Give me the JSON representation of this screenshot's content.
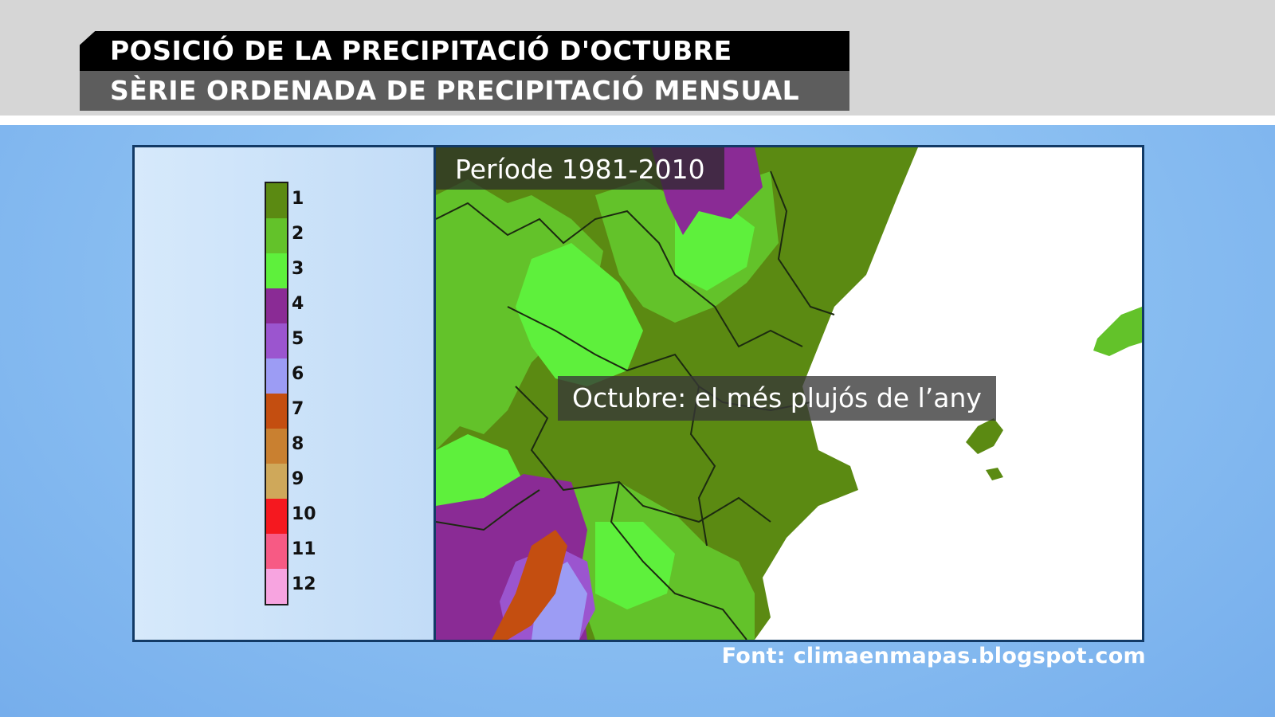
{
  "title": {
    "line1": "POSICIÓ DE LA PRECIPITACIÓ D'OCTUBRE",
    "line2": "SÈRIE ORDENADA DE PRECIPITACIÓ MENSUAL"
  },
  "map": {
    "period_label": "Període 1981-2010",
    "annotation": "Octubre: el més plujós de l’any",
    "colors": {
      "sea": "#ffffff",
      "border_lines": "#1c2a10"
    }
  },
  "legend": {
    "items": [
      {
        "label": "1",
        "color": "#5b8a12"
      },
      {
        "label": "2",
        "color": "#63c22a"
      },
      {
        "label": "3",
        "color": "#5ef03c"
      },
      {
        "label": "4",
        "color": "#8a2b95"
      },
      {
        "label": "5",
        "color": "#9b55cf"
      },
      {
        "label": "6",
        "color": "#9c9cf4"
      },
      {
        "label": "7",
        "color": "#c44e10"
      },
      {
        "label": "8",
        "color": "#c98030"
      },
      {
        "label": "9",
        "color": "#cfa85a"
      },
      {
        "label": "10",
        "color": "#f5181f"
      },
      {
        "label": "11",
        "color": "#f75a84"
      },
      {
        "label": "12",
        "color": "#f7a4e0"
      }
    ]
  },
  "source": "Font: climaenmapas.blogspot.com"
}
